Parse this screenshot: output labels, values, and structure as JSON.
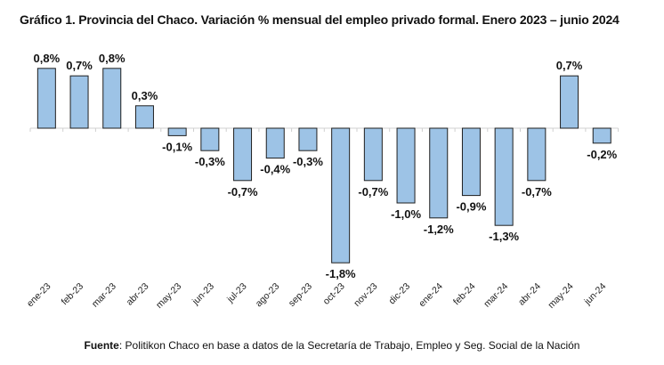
{
  "chart_data": {
    "type": "bar",
    "title": "Gráfico 1. Provincia del Chaco. Variación % mensual del empleo privado formal. Enero 2023 – junio 2024",
    "categories": [
      "ene-23",
      "feb-23",
      "mar-23",
      "abr-23",
      "may-23",
      "jun-23",
      "jul-23",
      "ago-23",
      "sep-23",
      "oct-23",
      "nov-23",
      "dic-23",
      "ene-24",
      "feb-24",
      "mar-24",
      "abr-24",
      "may-24",
      "jun-24"
    ],
    "values": [
      0.8,
      0.7,
      0.8,
      0.3,
      -0.1,
      -0.3,
      -0.7,
      -0.4,
      -0.3,
      -1.8,
      -0.7,
      -1.0,
      -1.2,
      -0.9,
      -1.3,
      -0.7,
      0.7,
      -0.2
    ],
    "data_labels": [
      "0,8%",
      "0,7%",
      "0,8%",
      "0,3%",
      "-0,1%",
      "-0,3%",
      "-0,7%",
      "-0,4%",
      "-0,3%",
      "-1,8%",
      "-0,7%",
      "-1,0%",
      "-1,2%",
      "-0,9%",
      "-1,3%",
      "-0,7%",
      "0,7%",
      "-0,2%"
    ],
    "xlabel": "",
    "ylabel": "",
    "grid": false,
    "legend": "none",
    "bar_color": "#9dc3e6",
    "bar_outline": "#1f1f1f"
  },
  "source": {
    "label": "Fuente",
    "text": ": Politikon Chaco en base a datos de la Secretaría de Trabajo, Empleo y Seg. Social de la Nación"
  }
}
